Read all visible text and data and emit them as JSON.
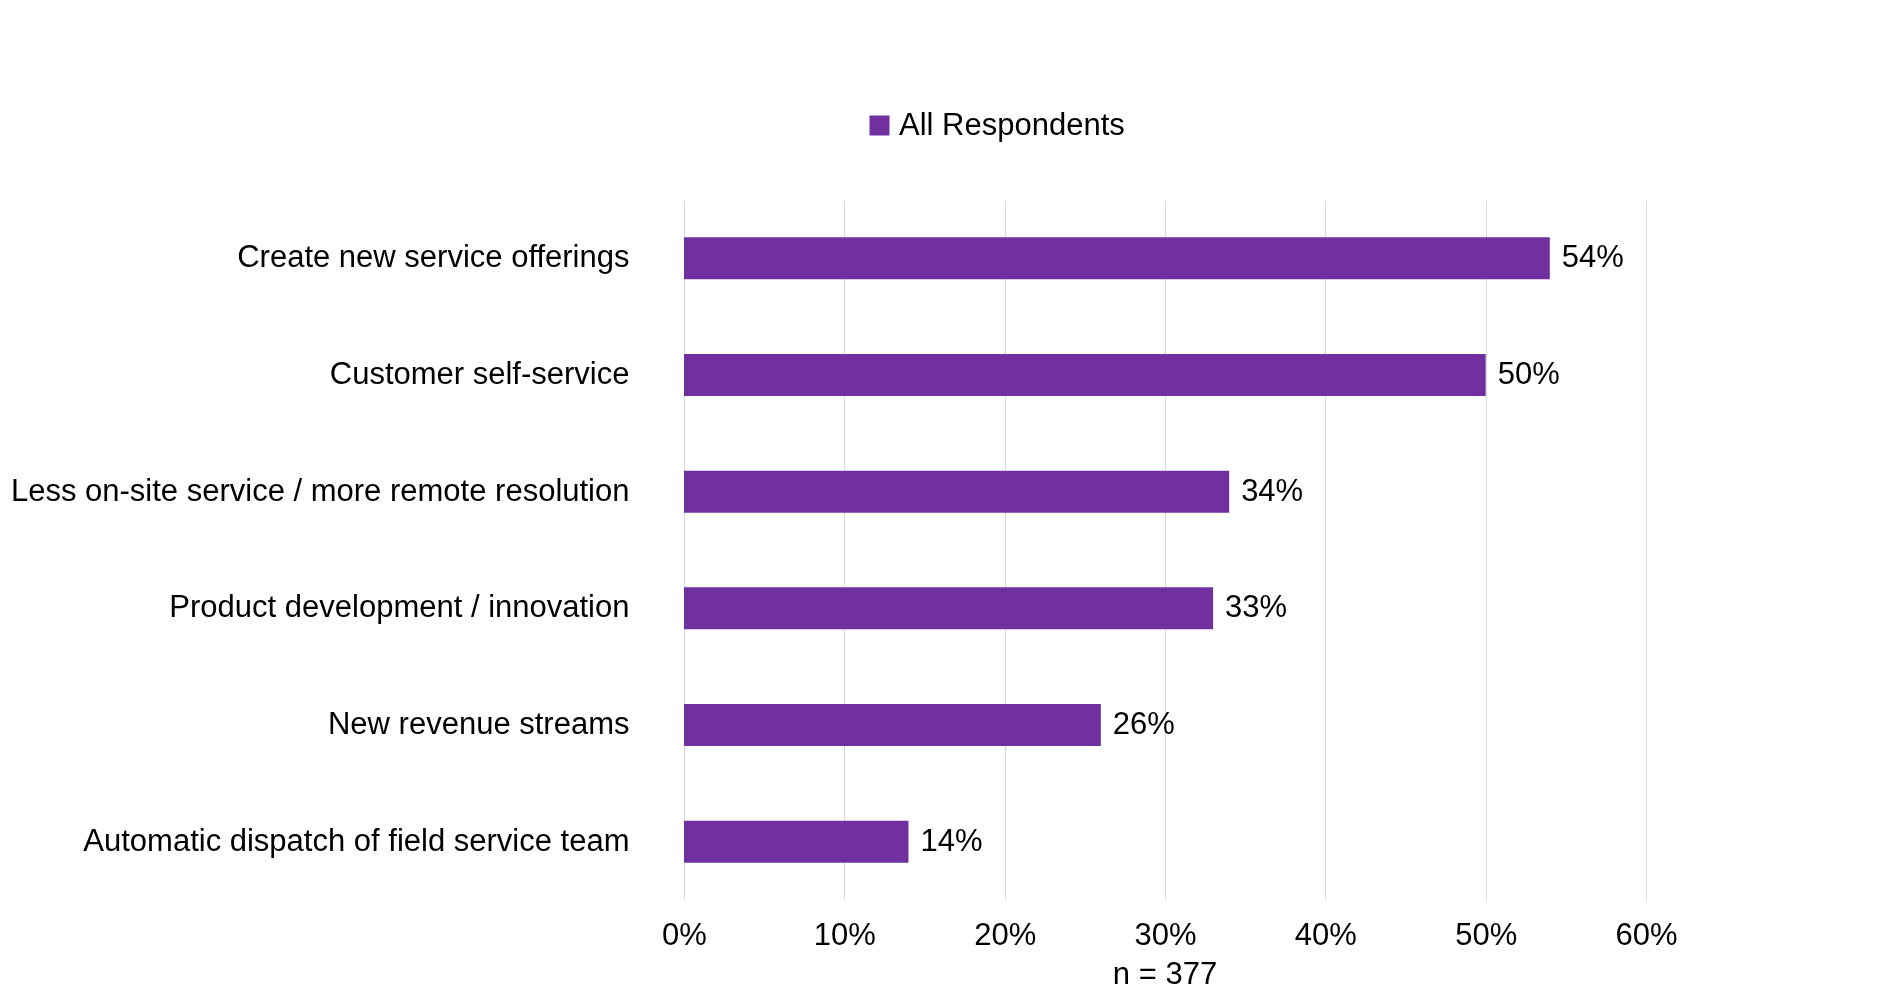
{
  "chart_data": {
    "type": "bar",
    "orientation": "horizontal",
    "categories": [
      "Create new service offerings",
      "Customer self-service",
      "Less on-site service / more remote resolution",
      "Product development / innovation",
      "New revenue streams",
      "Automatic dispatch of field service team"
    ],
    "series": [
      {
        "name": "All Respondents",
        "color": "#7030a0",
        "values": [
          54,
          50,
          34,
          33,
          26,
          14
        ],
        "value_labels": [
          "54%",
          "50%",
          "34%",
          "33%",
          "26%",
          "14%"
        ]
      }
    ],
    "xlim": [
      0,
      60
    ],
    "xticks": [
      {
        "value": 0,
        "label": "0%"
      },
      {
        "value": 10,
        "label": "10%"
      },
      {
        "value": 20,
        "label": "20%"
      },
      {
        "value": 30,
        "label": "30%"
      },
      {
        "value": 40,
        "label": "40%"
      },
      {
        "value": 50,
        "label": "50%"
      },
      {
        "value": 60,
        "label": "60%"
      }
    ],
    "grid": "x",
    "legend": "top",
    "annotations": [
      "n = 377"
    ]
  }
}
